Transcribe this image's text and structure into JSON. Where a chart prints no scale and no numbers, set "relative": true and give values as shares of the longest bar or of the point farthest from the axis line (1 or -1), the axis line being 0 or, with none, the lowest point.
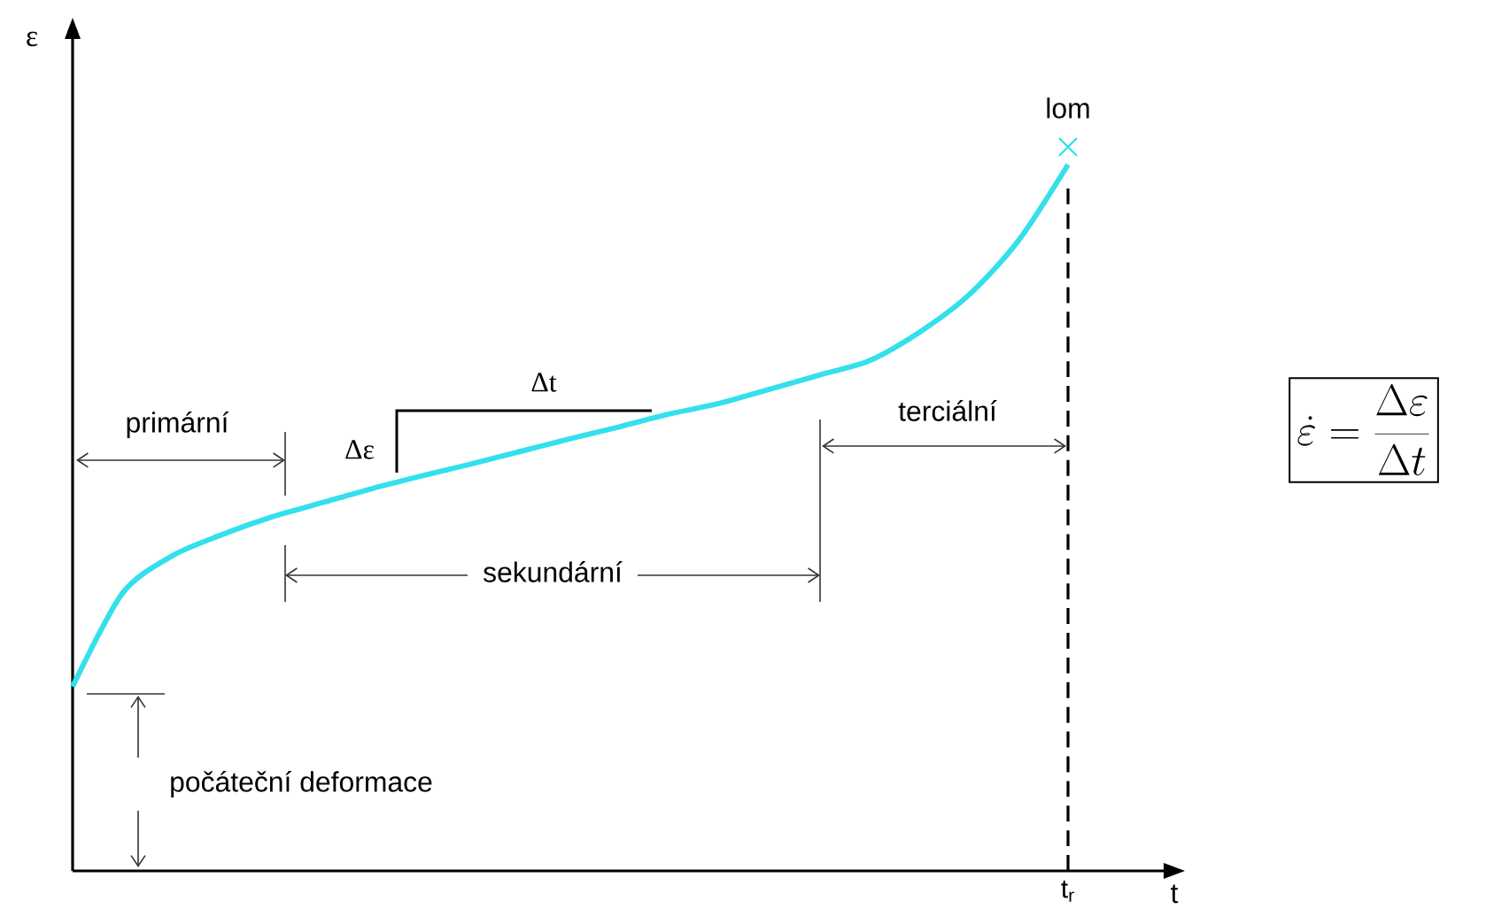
{
  "chart_data": {
    "type": "line",
    "xlabel": "t",
    "ylabel": "ε",
    "relative": true,
    "categories": [
      null,
      null,
      null,
      null,
      null,
      null,
      null,
      null,
      null,
      null,
      null,
      null,
      null,
      null,
      null,
      null,
      null,
      null,
      null,
      null,
      null
    ],
    "series": [
      {
        "color": "#33e0ec",
        "values": [
          0.261,
          0.393,
          0.446,
          0.476,
          0.501,
          0.521,
          0.541,
          0.559,
          0.576,
          0.594,
          0.612,
          0.629,
          0.647,
          0.662,
          0.682,
          0.702,
          0.722,
          0.762,
          0.815,
          0.892,
          1.0
        ]
      }
    ],
    "annotations": [
      "t$_{r}$",
      "lom",
      "primární",
      "sekundární",
      "terciální",
      "počáteční deformace",
      "Δε",
      "Δt",
      "\\dot{\\varepsilon} = \\frac{\\Delta\\varepsilon}{\\Delta t}"
    ]
  }
}
